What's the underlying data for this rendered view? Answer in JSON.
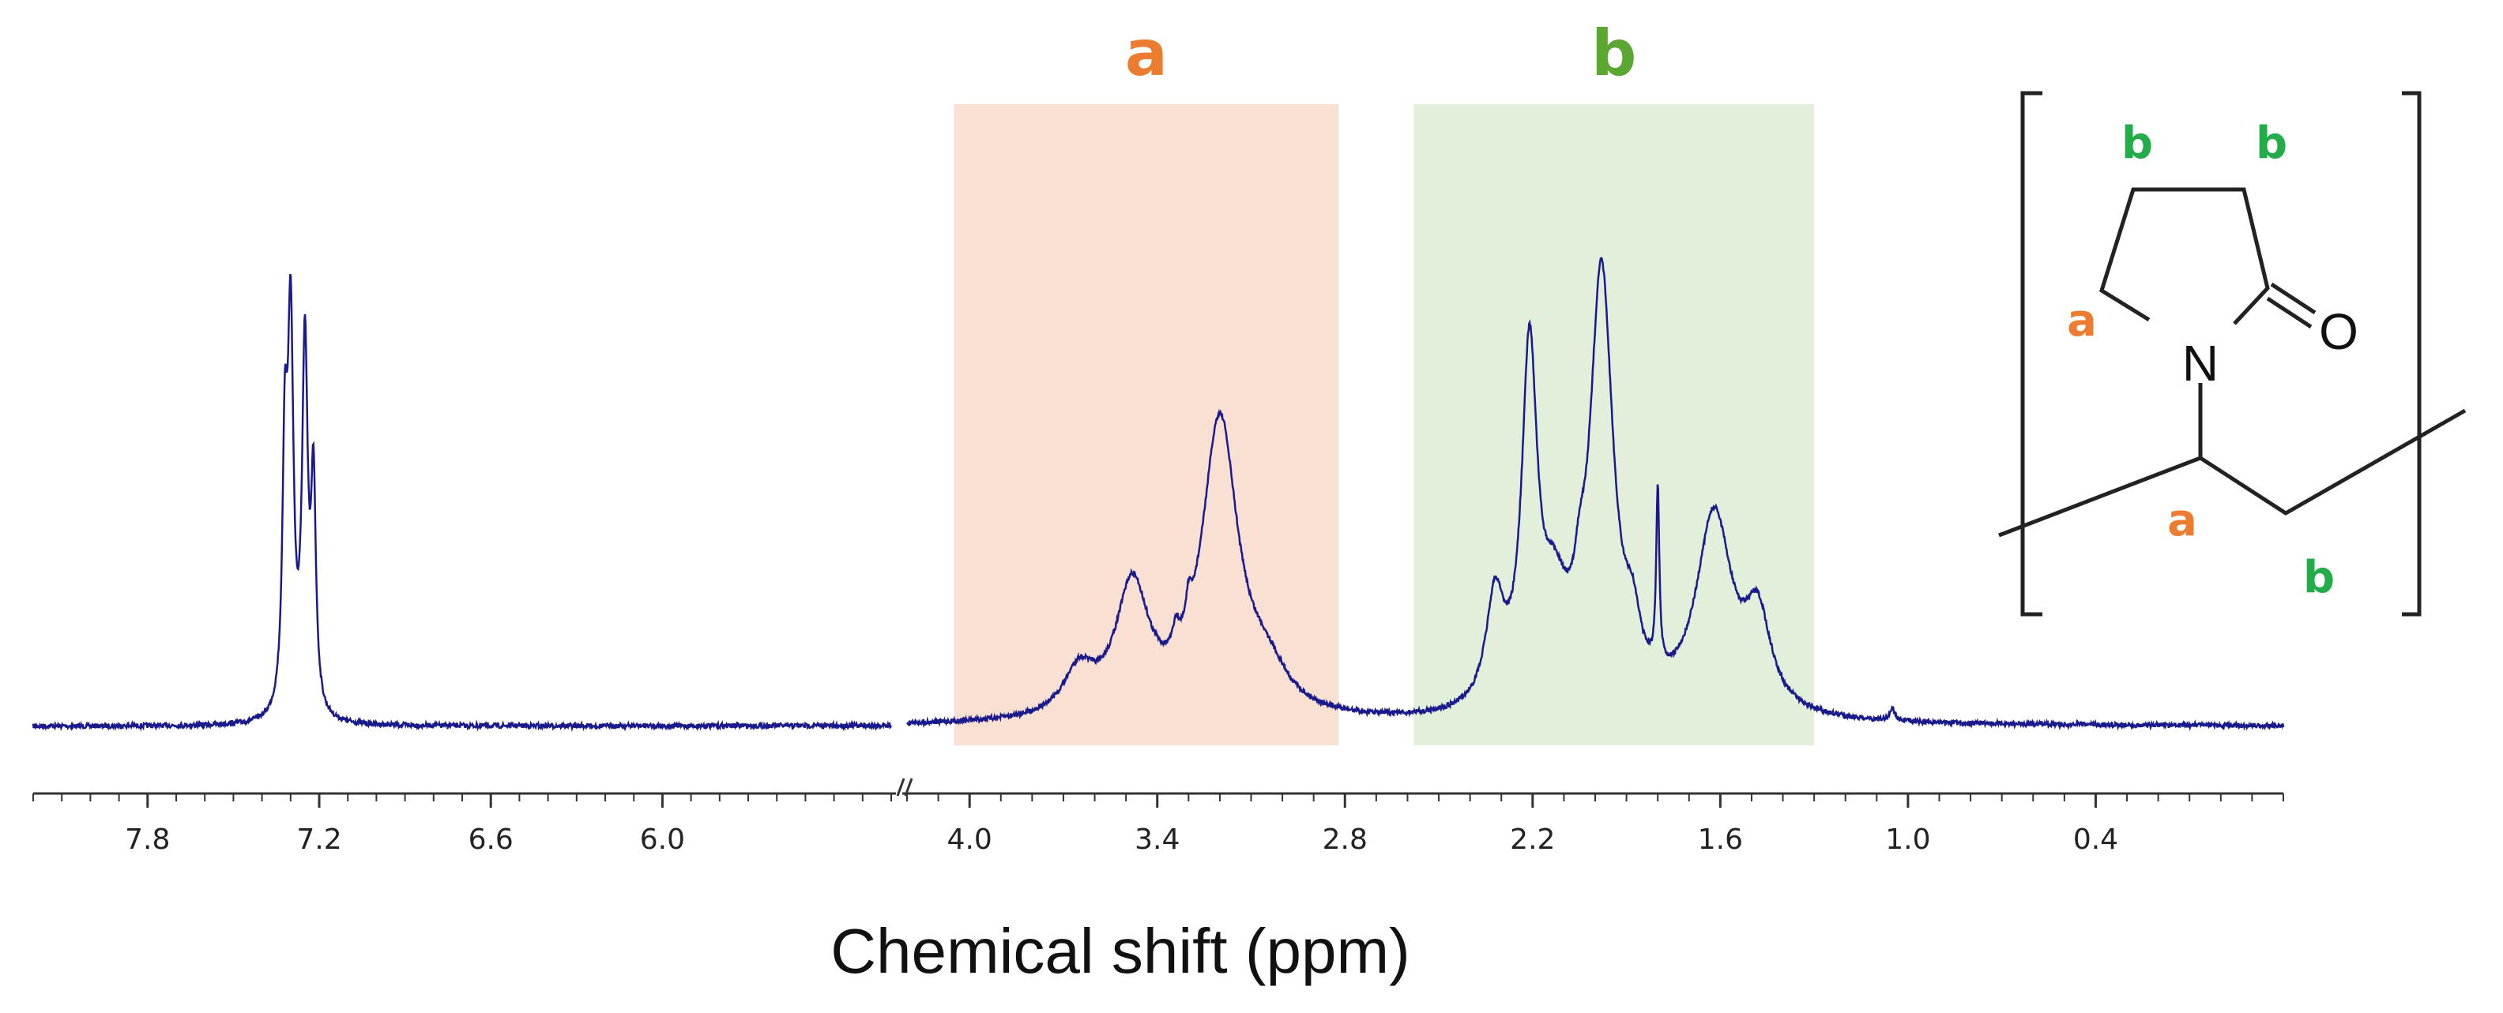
{
  "chart_data": {
    "type": "line",
    "title": "",
    "xlabel": "Chemical shift (ppm)",
    "ylabel": "",
    "x_axis_reversed": true,
    "x_axis_broken": true,
    "segments": [
      {
        "name": "left",
        "x_range": [
          8.2,
          5.2
        ],
        "ticks": [
          "7.8",
          "7.2",
          "6.6",
          "6.0"
        ]
      },
      {
        "name": "right",
        "x_range": [
          4.2,
          -0.2
        ],
        "ticks": [
          "4.0",
          "3.4",
          "2.8",
          "2.2",
          "1.6",
          "1.0",
          "0.4"
        ]
      }
    ],
    "regions": [
      {
        "label": "a",
        "from_ppm": 4.05,
        "to_ppm": 2.82,
        "color": "#f8e0d2",
        "label_color": "#ec7c30"
      },
      {
        "label": "b",
        "from_ppm": 2.58,
        "to_ppm": 1.3,
        "color": "#e2efda",
        "label_color": "#5aa832"
      }
    ],
    "peaks": [
      {
        "ppm": 7.3,
        "height": 0.86,
        "width": 0.012
      },
      {
        "ppm": 7.32,
        "height": 0.55,
        "width": 0.01
      },
      {
        "ppm": 7.25,
        "height": 0.82,
        "width": 0.012
      },
      {
        "ppm": 7.22,
        "height": 0.5,
        "width": 0.01
      },
      {
        "ppm": 3.65,
        "height": 0.1,
        "width": 0.06
      },
      {
        "ppm": 3.48,
        "height": 0.29,
        "width": 0.065
      },
      {
        "ppm": 3.34,
        "height": 0.05,
        "width": 0.012
      },
      {
        "ppm": 3.3,
        "height": 0.06,
        "width": 0.01
      },
      {
        "ppm": 3.2,
        "height": 0.67,
        "width": 0.07
      },
      {
        "ppm": 3.05,
        "height": 0.08,
        "width": 0.08
      },
      {
        "ppm": 2.32,
        "height": 0.24,
        "width": 0.035
      },
      {
        "ppm": 2.21,
        "height": 0.78,
        "width": 0.03
      },
      {
        "ppm": 2.13,
        "height": 0.2,
        "width": 0.05
      },
      {
        "ppm": 2.05,
        "height": 0.1,
        "width": 0.02
      },
      {
        "ppm": 1.98,
        "height": 0.98,
        "width": 0.045
      },
      {
        "ppm": 1.88,
        "height": 0.12,
        "width": 0.03
      },
      {
        "ppm": 1.8,
        "height": 0.4,
        "width": 0.006
      },
      {
        "ppm": 1.62,
        "height": 0.45,
        "width": 0.07
      },
      {
        "ppm": 1.48,
        "height": 0.2,
        "width": 0.05
      },
      {
        "ppm": 1.05,
        "height": 0.03,
        "width": 0.008
      }
    ],
    "line_color": "#1a1a8c"
  },
  "structure": {
    "labels": {
      "b_top_left": "b",
      "b_top_right": "b",
      "a_ring": "a",
      "a_backbone": "a",
      "b_backbone": "b",
      "nitrogen": "N",
      "oxygen": "O"
    },
    "colors": {
      "a": "#ec7c30",
      "b": "#22ac4a"
    }
  }
}
